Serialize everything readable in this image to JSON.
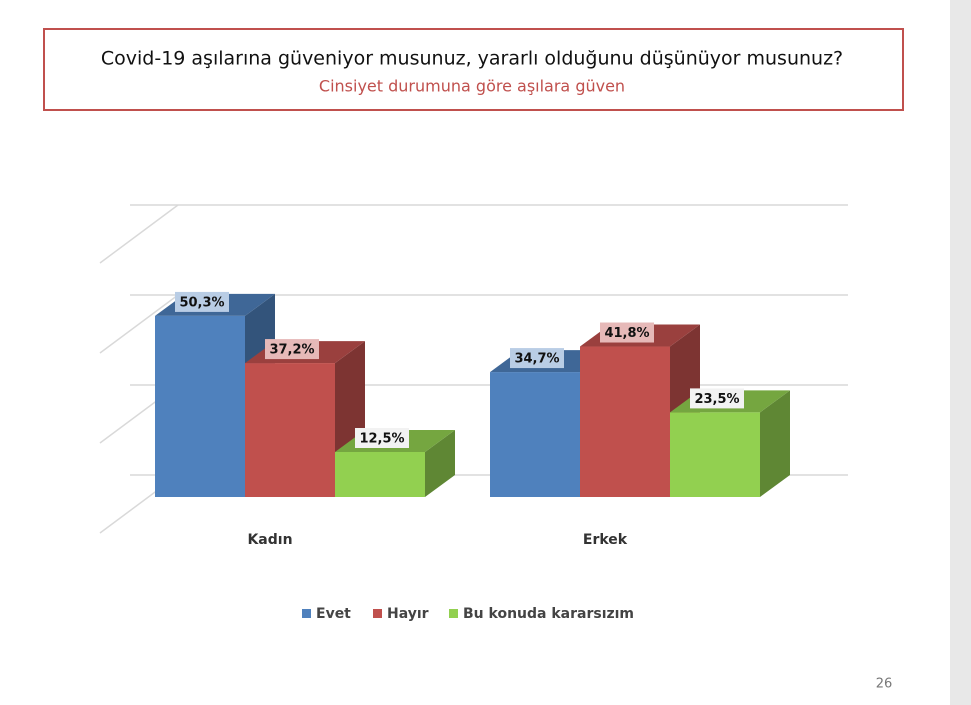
{
  "chart_data": {
    "type": "bar3d",
    "title": "Covid-19 aşılarına güveniyor musunuz, yararlı olduğunu düşünüyor musunuz?",
    "subtitle": "Cinsiyet durumuna göre aşılara güven",
    "categories": [
      "Kadın",
      "Erkek"
    ],
    "series": [
      {
        "name": "Evet",
        "color": "#4f81bd",
        "values": [
          50.3,
          34.7
        ],
        "value_labels": [
          "50,3%",
          "34,7%"
        ]
      },
      {
        "name": "Hayır",
        "color": "#c0504d",
        "values": [
          37.2,
          41.8
        ],
        "value_labels": [
          "37,2%",
          "41,8%"
        ]
      },
      {
        "name": "Bu konuda kararsızım",
        "color": "#92d050",
        "values": [
          12.5,
          23.5
        ],
        "value_labels": [
          "12,5%",
          "23,5%"
        ]
      }
    ],
    "ylim": [
      0,
      75
    ],
    "yticks": [
      0,
      25,
      50,
      75
    ],
    "grid": true,
    "page_number": "26"
  }
}
